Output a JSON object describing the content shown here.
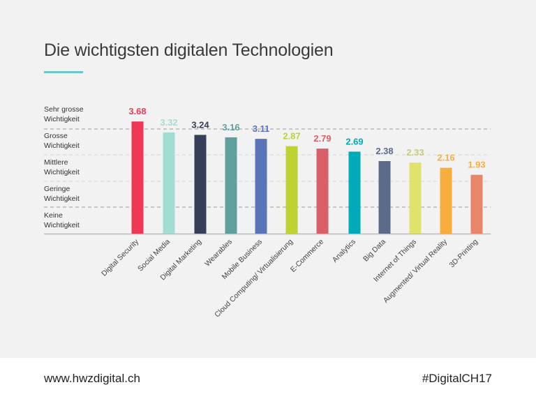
{
  "chart_data": {
    "type": "bar",
    "title": "Die wichtigsten digitalen Technologien",
    "categories": [
      "Digital Security",
      "Social Media",
      "Digital Marketing",
      "Wearables",
      "Mobile Business",
      "Cloud Computing/ Virtualisierung",
      "E-Commerce",
      "Analytics",
      "Big Data",
      "Internet of Things",
      "Augmented/ Virtual Reality",
      "3D-Printing"
    ],
    "values": [
      3.68,
      3.32,
      3.24,
      3.16,
      3.11,
      2.87,
      2.79,
      2.69,
      2.38,
      2.33,
      2.16,
      1.93
    ],
    "value_labels": [
      "3.68",
      "3.32",
      "3.24",
      "3.16",
      "3.11",
      "2.87",
      "2.79",
      "2.69",
      "2.38",
      "2.33",
      "2.16",
      "1.93"
    ],
    "bar_colors": [
      "#ef3858",
      "#a3dcd3",
      "#353f58",
      "#5f9f9e",
      "#5a74b9",
      "#bed232",
      "#d9606a",
      "#00aab8",
      "#5c6a8c",
      "#dfe36c",
      "#f8ae3c",
      "#e9866a"
    ],
    "label_colors": [
      "#ef3858",
      "#a3dcd3",
      "#353f58",
      "#5f9f9e",
      "#5a74b9",
      "#bed232",
      "#d9606a",
      "#00aab8",
      "#5c6a8c",
      "#c6c97a",
      "#f8ae3c",
      "#f8ae3c"
    ],
    "y_category_labels": [
      [
        "Sehr grosse",
        "Wichtigkeit"
      ],
      [
        "Grosse",
        "Wichtigkeit"
      ],
      [
        "Mittlere",
        "Wichtigkeit"
      ],
      [
        "Geringe",
        "Wichtigkeit"
      ],
      [
        "Keine",
        "Wichtigkeit"
      ]
    ],
    "grid": true,
    "xlabel": "",
    "ylabel": ""
  },
  "footer": {
    "url": "www.hwzdigital.ch",
    "hashtag": "#DigitalCH17"
  },
  "colors": {
    "accent": "#6cc3cc"
  }
}
